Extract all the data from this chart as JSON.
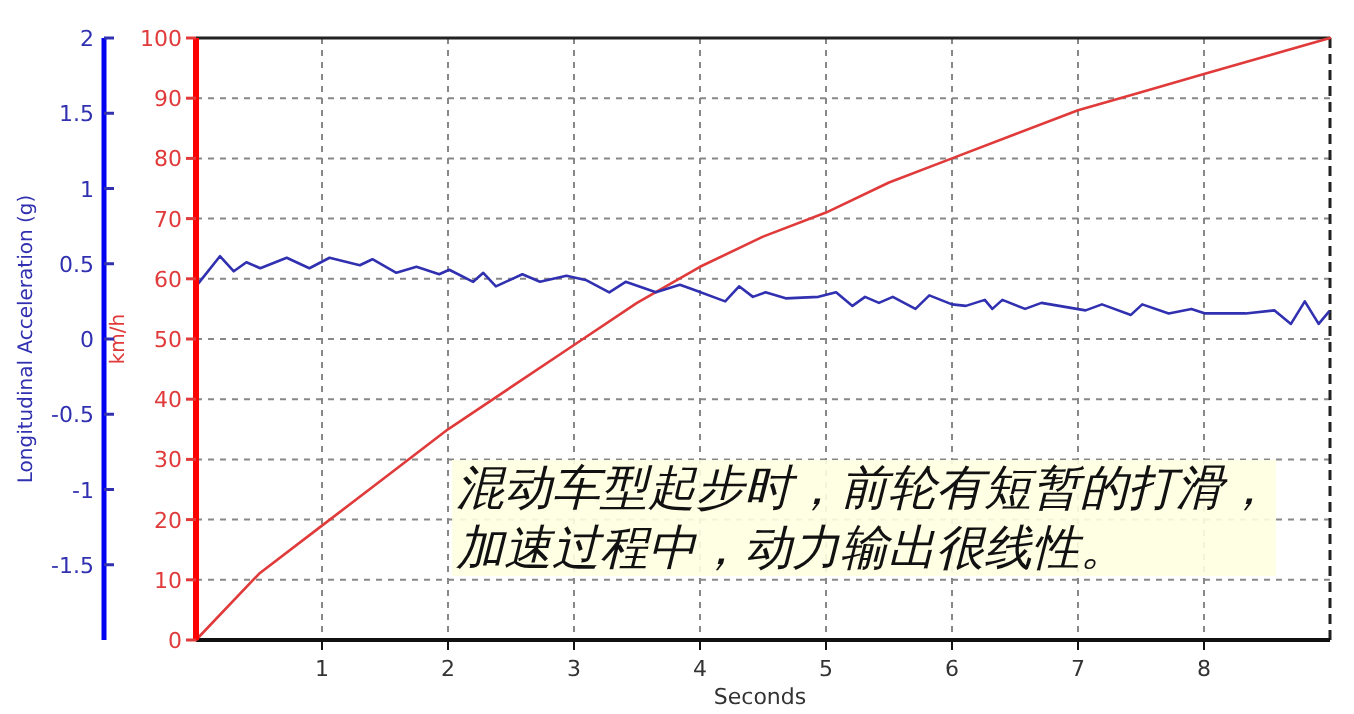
{
  "chart_data": {
    "type": "line",
    "xlabel": "Seconds",
    "ylabel": "km/h",
    "y2label": "Longitudinal Acceleration (g)",
    "xlim": [
      0,
      9
    ],
    "xticks": [
      1,
      2,
      3,
      4,
      5,
      6,
      7,
      8
    ],
    "ylim": [
      0,
      100
    ],
    "yticks": [
      0,
      10,
      20,
      30,
      40,
      50,
      60,
      70,
      80,
      90,
      100
    ],
    "y2lim": [
      -2,
      2
    ],
    "y2ticks": [
      -1.5,
      -1,
      -0.5,
      0,
      0.5,
      1,
      1.5,
      2
    ],
    "grid": true,
    "marker": "none",
    "line_style": "solid",
    "annotations": [
      "混动车型起步时，前轮有短暂的打滑，加速过程中，动力输出很线性。"
    ],
    "series": [
      {
        "color": "#e03a3a",
        "x": [
          0,
          0.5,
          1,
          1.5,
          2,
          2.5,
          3,
          3.5,
          4,
          4.5,
          5,
          5.5,
          6,
          6.5,
          7,
          7.5,
          8,
          8.5,
          9
        ],
        "values": [
          0,
          11,
          19,
          27,
          35,
          42,
          49,
          56,
          62,
          67,
          71,
          76,
          80,
          84,
          88,
          91,
          94,
          97,
          100
        ]
      },
      {
        "color": "#3030b0",
        "axis": "y2",
        "x": [
          0,
          0.19,
          0.3,
          0.4,
          0.51,
          0.72,
          0.9,
          1.06,
          1.3,
          1.4,
          1.59,
          1.75,
          1.93,
          2.01,
          2.2,
          2.28,
          2.38,
          2.59,
          2.73,
          2.94,
          3.1,
          3.28,
          3.41,
          3.65,
          3.84,
          3.94,
          4.2,
          4.31,
          4.42,
          4.52,
          4.68,
          4.94,
          5.08,
          5.21,
          5.31,
          5.42,
          5.53,
          5.71,
          5.82,
          6.0,
          6.11,
          6.26,
          6.32,
          6.4,
          6.58,
          6.71,
          7.06,
          7.19,
          7.42,
          7.51,
          7.72,
          7.9,
          8.01,
          8.33,
          8.56,
          8.69,
          8.8,
          8.91,
          8.99
        ],
        "values": [
          0.35,
          0.55,
          0.45,
          0.51,
          0.47,
          0.54,
          0.47,
          0.54,
          0.49,
          0.53,
          0.44,
          0.48,
          0.43,
          0.46,
          0.38,
          0.44,
          0.35,
          0.43,
          0.38,
          0.42,
          0.39,
          0.31,
          0.38,
          0.31,
          0.36,
          0.33,
          0.25,
          0.35,
          0.28,
          0.31,
          0.27,
          0.28,
          0.31,
          0.22,
          0.28,
          0.24,
          0.28,
          0.2,
          0.29,
          0.23,
          0.22,
          0.26,
          0.2,
          0.26,
          0.2,
          0.24,
          0.19,
          0.23,
          0.16,
          0.23,
          0.17,
          0.2,
          0.17,
          0.17,
          0.19,
          0.1,
          0.25,
          0.1,
          0.18
        ]
      }
    ]
  }
}
